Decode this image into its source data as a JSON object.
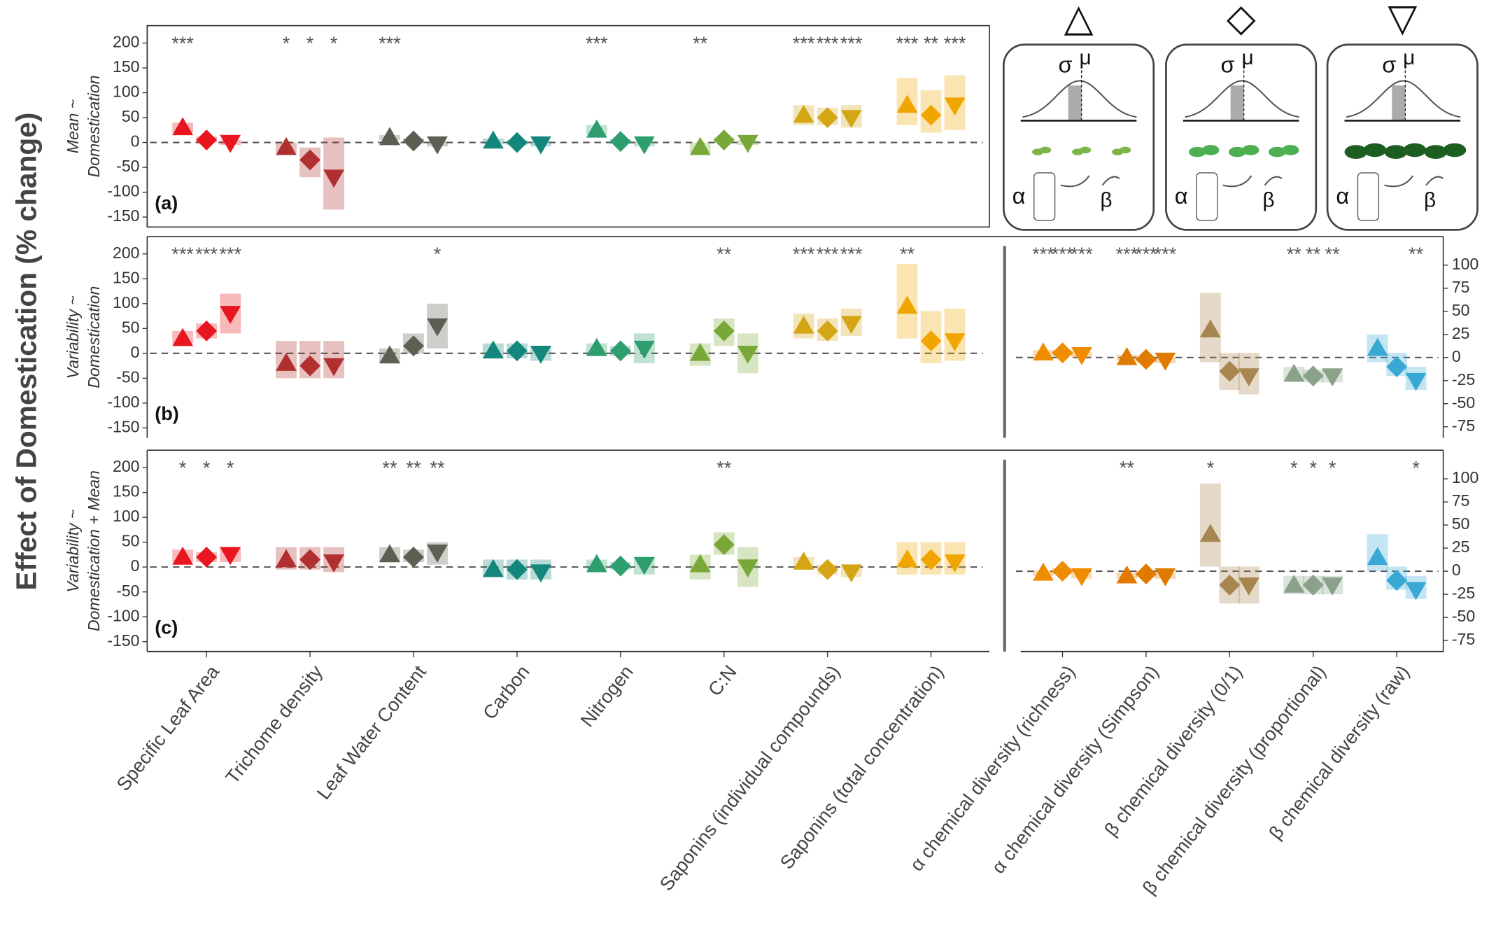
{
  "ylabel": "Effect of Domestication (% change)",
  "inset_symbols": [
    "△",
    "◇",
    "▽"
  ],
  "inset_labels": {
    "sigma": "σ",
    "mu": "μ",
    "alpha": "α",
    "beta": "β"
  },
  "chart_data": [
    {
      "type": "point_interval",
      "panel_label": "(a)",
      "ylabel": [
        "Mean ~",
        "Domestication"
      ],
      "colors": [
        "#e8161f",
        "#b03030",
        "#5e5e52",
        "#13877c",
        "#2e9e6e",
        "#7aa838",
        "#d4a514",
        "#f0a500"
      ],
      "ylim": [
        -170,
        235
      ],
      "yticks": [
        -150,
        -100,
        -50,
        0,
        50,
        100,
        150,
        200
      ],
      "series": [
        {
          "shape": "triangle-up",
          "values": [
            30,
            -10,
            10,
            3,
            25,
            -10,
            55,
            75
          ],
          "lower": [
            20,
            -20,
            5,
            -3,
            15,
            -20,
            35,
            35
          ],
          "upper": [
            40,
            0,
            15,
            8,
            35,
            0,
            75,
            130
          ],
          "stars": [
            "***",
            "*",
            "***",
            null,
            "***",
            "**",
            "***",
            "***"
          ]
        },
        {
          "shape": "diamond",
          "values": [
            5,
            -35,
            3,
            0,
            2,
            5,
            50,
            55
          ],
          "lower": [
            0,
            -70,
            -2,
            -5,
            -3,
            0,
            35,
            20
          ],
          "upper": [
            12,
            -10,
            8,
            5,
            7,
            10,
            70,
            105
          ],
          "stars": [
            null,
            "*",
            null,
            null,
            null,
            null,
            "***",
            "**"
          ]
        },
        {
          "shape": "triangle-down",
          "values": [
            0,
            -70,
            -3,
            -3,
            -3,
            0,
            50,
            75
          ],
          "lower": [
            -5,
            -135,
            -8,
            -8,
            -8,
            -5,
            30,
            25
          ],
          "upper": [
            5,
            10,
            2,
            2,
            2,
            5,
            75,
            135
          ],
          "stars": [
            null,
            "*",
            null,
            null,
            null,
            null,
            "***",
            "***"
          ]
        }
      ]
    },
    {
      "type": "point_interval",
      "panel_label": "(b)",
      "ylabel": [
        "Variability ~",
        "Domestication"
      ],
      "colors": [
        "#e8161f",
        "#b03030",
        "#5e5e52",
        "#13877c",
        "#2e9e6e",
        "#7aa838",
        "#d4a514",
        "#f0a500"
      ],
      "ylim": [
        -170,
        235
      ],
      "yticks": [
        -150,
        -100,
        -50,
        0,
        50,
        100,
        150,
        200
      ],
      "series": [
        {
          "shape": "triangle-up",
          "values": [
            30,
            -20,
            -5,
            5,
            10,
            0,
            55,
            95
          ],
          "lower": [
            20,
            -50,
            -20,
            -10,
            -5,
            -25,
            30,
            30
          ],
          "upper": [
            45,
            25,
            10,
            20,
            20,
            20,
            80,
            180
          ],
          "stars": [
            "***",
            null,
            null,
            null,
            null,
            null,
            "***",
            "**"
          ]
        },
        {
          "shape": "diamond",
          "values": [
            45,
            -25,
            15,
            5,
            5,
            45,
            45,
            25
          ],
          "lower": [
            30,
            -50,
            0,
            -10,
            -5,
            15,
            25,
            -20
          ],
          "upper": [
            60,
            25,
            40,
            20,
            15,
            70,
            70,
            85
          ],
          "stars": [
            "***",
            null,
            null,
            null,
            null,
            "**",
            "***",
            null
          ]
        },
        {
          "shape": "triangle-down",
          "values": [
            80,
            -25,
            55,
            0,
            10,
            0,
            60,
            25
          ],
          "lower": [
            40,
            -50,
            10,
            -15,
            -20,
            -40,
            35,
            -15
          ],
          "upper": [
            120,
            25,
            100,
            15,
            40,
            40,
            90,
            90
          ],
          "stars": [
            "***",
            null,
            "*",
            null,
            null,
            null,
            "***",
            null
          ]
        }
      ]
    },
    {
      "type": "point_interval",
      "axis_side": "right",
      "colors": [
        "#f08c00",
        "#e07b00",
        "#a88650",
        "#8aa28a",
        "#3aa8d4"
      ],
      "ylim": [
        -87,
        131
      ],
      "yticks": [
        -75,
        -50,
        -25,
        0,
        25,
        50,
        75,
        100
      ],
      "series": [
        {
          "shape": "triangle-up",
          "values": [
            5,
            0,
            30,
            -18,
            10
          ],
          "lower": [
            2,
            -3,
            -5,
            -25,
            -5
          ],
          "upper": [
            8,
            3,
            70,
            -10,
            25
          ],
          "stars": [
            "***",
            "***",
            null,
            "**",
            null
          ]
        },
        {
          "shape": "diamond",
          "values": [
            5,
            -2,
            -15,
            -20,
            -10
          ],
          "lower": [
            2,
            -5,
            -35,
            -27,
            -20
          ],
          "upper": [
            8,
            1,
            5,
            -13,
            5
          ],
          "stars": [
            "***",
            "***",
            null,
            "**",
            null
          ]
        },
        {
          "shape": "triangle-down",
          "values": [
            3,
            -3,
            -20,
            -20,
            -25
          ],
          "lower": [
            0,
            -6,
            -40,
            -27,
            -35
          ],
          "upper": [
            6,
            0,
            5,
            -13,
            -10
          ],
          "stars": [
            "***",
            "***",
            null,
            "**",
            "**"
          ]
        }
      ]
    },
    {
      "type": "point_interval",
      "panel_label": "(c)",
      "ylabel": [
        "Variability ~",
        "Domestication + Mean"
      ],
      "categories": [
        "Specific Leaf Area",
        "Trichome density",
        "Leaf Water Content",
        "Carbon",
        "Nitrogen",
        "C:N",
        "Saponins (individual compounds)",
        "Saponins (total concentration)"
      ],
      "colors": [
        "#e8161f",
        "#b03030",
        "#5e5e52",
        "#13877c",
        "#2e9e6e",
        "#7aa838",
        "#d4a514",
        "#f0a500"
      ],
      "ylim": [
        -170,
        235
      ],
      "yticks": [
        -150,
        -100,
        -50,
        0,
        50,
        100,
        150,
        200
      ],
      "series": [
        {
          "shape": "triangle-up",
          "values": [
            20,
            15,
            25,
            -5,
            5,
            5,
            10,
            15
          ],
          "lower": [
            10,
            -5,
            10,
            -20,
            -5,
            -25,
            0,
            -15
          ],
          "upper": [
            35,
            40,
            40,
            15,
            15,
            25,
            20,
            50
          ],
          "stars": [
            "*",
            null,
            "**",
            null,
            null,
            null,
            null,
            null
          ]
        },
        {
          "shape": "diamond",
          "values": [
            20,
            15,
            20,
            -5,
            2,
            45,
            -5,
            15
          ],
          "lower": [
            10,
            -5,
            10,
            -25,
            -5,
            25,
            -15,
            -15
          ],
          "upper": [
            30,
            40,
            35,
            15,
            10,
            70,
            5,
            50
          ],
          "stars": [
            "*",
            null,
            "**",
            null,
            null,
            "**",
            null,
            null
          ]
        },
        {
          "shape": "triangle-down",
          "values": [
            25,
            10,
            30,
            -10,
            5,
            0,
            -10,
            10
          ],
          "lower": [
            10,
            -10,
            5,
            -25,
            -15,
            -40,
            -20,
            -15
          ],
          "upper": [
            40,
            40,
            50,
            15,
            20,
            40,
            0,
            50
          ],
          "stars": [
            "*",
            null,
            "**",
            null,
            null,
            null,
            null,
            null
          ]
        }
      ]
    },
    {
      "type": "point_interval",
      "axis_side": "right",
      "categories": [
        "α chemical diversity (richness)",
        "α chemical diversity (Simpson)",
        "β chemical diversity (0/1)",
        "β chemical diversity (proportional)",
        "β chemical diversity (raw)"
      ],
      "colors": [
        "#f08c00",
        "#e07b00",
        "#a88650",
        "#8aa28a",
        "#3aa8d4"
      ],
      "ylim": [
        -87,
        131
      ],
      "yticks": [
        -75,
        -50,
        -25,
        0,
        25,
        50,
        75,
        100
      ],
      "series": [
        {
          "shape": "triangle-up",
          "values": [
            -2,
            -5,
            40,
            -15,
            15
          ],
          "lower": [
            -5,
            -8,
            5,
            -25,
            0
          ],
          "upper": [
            1,
            -2,
            95,
            -5,
            40
          ],
          "stars": [
            null,
            "**",
            "*",
            "*",
            null
          ]
        },
        {
          "shape": "diamond",
          "values": [
            0,
            -3,
            -15,
            -15,
            -10
          ],
          "lower": [
            -3,
            -6,
            -35,
            -25,
            -20
          ],
          "upper": [
            3,
            0,
            5,
            -5,
            5
          ],
          "stars": [
            null,
            null,
            null,
            "*",
            null
          ]
        },
        {
          "shape": "triangle-down",
          "values": [
            -5,
            -5,
            -15,
            -15,
            -20
          ],
          "lower": [
            -8,
            -8,
            -35,
            -25,
            -30
          ],
          "upper": [
            -2,
            -2,
            5,
            -5,
            -5
          ],
          "stars": [
            null,
            null,
            null,
            "*",
            "*"
          ]
        }
      ]
    }
  ]
}
